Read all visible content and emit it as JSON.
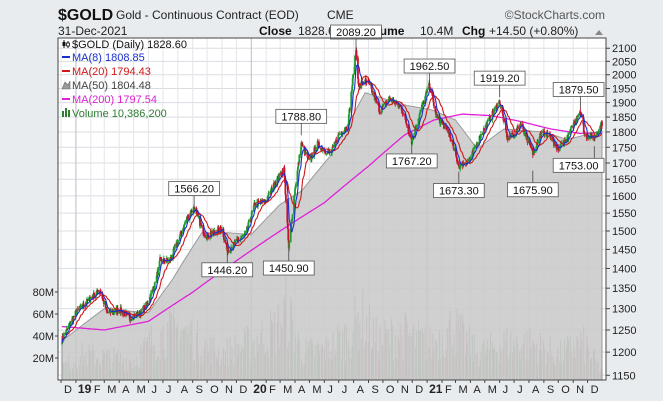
{
  "header": {
    "symbol": "$GOLD",
    "name": "Gold - Continuous Contract (EOD)",
    "exchange": "CME",
    "brand": "©StockCharts.com",
    "date": "31-Dec-2021",
    "close_label": "Close",
    "close_value": "1828.60",
    "volume_label": "Volume",
    "volume_value": "10.4M",
    "chg_label": "Chg",
    "chg_value": "+14.50 (+0.80%)"
  },
  "legend": [
    {
      "label": "$GOLD (Daily) 1828.60",
      "color": "#111111",
      "icon": "candlestick-icon"
    },
    {
      "label": "MA(8) 1808.85",
      "color": "#1a2fd0",
      "icon": "line-swatch-icon"
    },
    {
      "label": "MA(20) 1794.43",
      "color": "#d01818",
      "icon": "line-swatch-icon"
    },
    {
      "label": "MA(50) 1804.48",
      "color": "#777777",
      "icon": "area-swatch-icon"
    },
    {
      "label": "MA(200) 1797.54",
      "color": "#e020d8",
      "icon": "line-swatch-icon"
    },
    {
      "label": "Volume 10,386,200",
      "color": "#2e7d32",
      "icon": "volume-bars-icon"
    }
  ],
  "colors": {
    "background": "#e9ecef",
    "plot": "#ffffff",
    "up_candle": "#1e9a2e",
    "down_candle": "#c8102e",
    "ma8": "#1a2fd0",
    "ma20": "#d01818",
    "ma50_fill": "#c8c8c8",
    "ma200": "#e020d8",
    "volume_up": "#9db89d",
    "volume_down": "#c49aa2"
  },
  "chart_data": {
    "type": "line",
    "title": "$GOLD Gold - Continuous Contract (EOD) CME",
    "xlabel": "",
    "ylabel": "",
    "ylim": [
      1140,
      2140
    ],
    "y_scale": "log",
    "grid": true,
    "legend_position": "top-left",
    "price_axis_ticks": [
      2100,
      2050,
      2000,
      1950,
      1900,
      1850,
      1800,
      1750,
      1700,
      1650,
      1600,
      1550,
      1500,
      1450,
      1400,
      1350,
      1300,
      1250,
      1200,
      1150
    ],
    "volume_axis_ticks": [
      "80M",
      "60M",
      "40M",
      "20M"
    ],
    "volume_axis_values": [
      80000000,
      60000000,
      40000000,
      20000000
    ],
    "x_tick_labels": [
      "D",
      "19",
      "F",
      "M",
      "A",
      "M",
      "J",
      "J",
      "A",
      "S",
      "O",
      "N",
      "D",
      "20",
      "F",
      "M",
      "A",
      "M",
      "J",
      "J",
      "A",
      "S",
      "O",
      "N",
      "D",
      "21",
      "F",
      "M",
      "A",
      "M",
      "J",
      "J",
      "A",
      "S",
      "O",
      "N",
      "D"
    ],
    "x_tick_bold": [
      false,
      true,
      false,
      false,
      false,
      false,
      false,
      false,
      false,
      false,
      false,
      false,
      false,
      true,
      false,
      false,
      false,
      false,
      false,
      false,
      false,
      false,
      false,
      false,
      false,
      true,
      false,
      false,
      false,
      false,
      false,
      false,
      false,
      false,
      false,
      false,
      false
    ],
    "x_tick_dates": [
      "2018-12-01",
      "2019-01-01",
      "2019-02-01",
      "2019-03-01",
      "2019-04-01",
      "2019-05-01",
      "2019-06-01",
      "2019-07-01",
      "2019-08-01",
      "2019-09-01",
      "2019-10-01",
      "2019-11-01",
      "2019-12-01",
      "2020-01-01",
      "2020-02-01",
      "2020-03-01",
      "2020-04-01",
      "2020-05-01",
      "2020-06-01",
      "2020-07-01",
      "2020-08-01",
      "2020-09-01",
      "2020-10-01",
      "2020-11-01",
      "2020-12-01",
      "2021-01-01",
      "2021-02-01",
      "2021-03-01",
      "2021-04-01",
      "2021-05-01",
      "2021-06-01",
      "2021-07-01",
      "2021-08-01",
      "2021-09-01",
      "2021-10-01",
      "2021-11-01",
      "2021-12-01"
    ],
    "x_range": [
      "2018-12-03",
      "2021-12-31"
    ],
    "series": [
      {
        "name": "$GOLD (Daily)",
        "x": [
          "2018-12-03",
          "2019-01-01",
          "2019-01-31",
          "2019-02-20",
          "2019-03-07",
          "2019-04-01",
          "2019-04-23",
          "2019-05-15",
          "2019-05-30",
          "2019-06-15",
          "2019-06-25",
          "2019-07-15",
          "2019-08-01",
          "2019-08-20",
          "2019-09-04",
          "2019-09-20",
          "2019-10-01",
          "2019-10-15",
          "2019-11-01",
          "2019-11-12",
          "2019-12-01",
          "2019-12-20",
          "2020-01-08",
          "2020-01-31",
          "2020-02-24",
          "2020-03-09",
          "2020-03-19",
          "2020-04-01",
          "2020-04-14",
          "2020-05-01",
          "2020-05-18",
          "2020-06-01",
          "2020-06-15",
          "2020-07-01",
          "2020-07-20",
          "2020-08-06",
          "2020-08-12",
          "2020-08-20",
          "2020-09-01",
          "2020-09-25",
          "2020-10-15",
          "2020-11-09",
          "2020-11-30",
          "2020-12-20",
          "2021-01-06",
          "2021-01-20",
          "2021-02-15",
          "2021-03-08",
          "2021-03-31",
          "2021-04-20",
          "2021-05-10",
          "2021-06-01",
          "2021-06-17",
          "2021-07-01",
          "2021-07-15",
          "2021-08-09",
          "2021-08-25",
          "2021-09-10",
          "2021-09-28",
          "2021-10-20",
          "2021-11-16",
          "2021-11-25",
          "2021-12-15",
          "2021-12-31"
        ],
        "values": [
          1228,
          1290,
          1325,
          1345,
          1290,
          1298,
          1278,
          1290,
          1312,
          1360,
          1420,
          1420,
          1470,
          1535,
          1566,
          1508,
          1485,
          1495,
          1505,
          1446,
          1470,
          1490,
          1575,
          1585,
          1650,
          1680,
          1450.9,
          1620,
          1760,
          1705,
          1760,
          1740,
          1730,
          1790,
          1820,
          2089.2,
          1950,
          1975,
          1970,
          1870,
          1915,
          1880,
          1770,
          1880,
          1962.5,
          1855,
          1800,
          1690,
          1710,
          1780,
          1840,
          1905,
          1780,
          1790,
          1830,
          1730,
          1795,
          1795,
          1740,
          1780,
          1875,
          1790,
          1780,
          1828.6
        ]
      },
      {
        "name": "MA(50)",
        "x": [
          "2018-12-03",
          "2019-03-01",
          "2019-06-01",
          "2019-07-20",
          "2019-09-20",
          "2019-11-15",
          "2020-01-01",
          "2020-03-01",
          "2020-04-15",
          "2020-06-15",
          "2020-08-01",
          "2020-08-25",
          "2020-10-01",
          "2020-11-20",
          "2021-01-10",
          "2021-03-01",
          "2021-04-15",
          "2021-06-10",
          "2021-07-20",
          "2021-09-01",
          "2021-10-20",
          "2021-12-31"
        ],
        "values": [
          1225,
          1300,
          1290,
          1370,
          1495,
          1495,
          1490,
          1575,
          1615,
          1725,
          1860,
          1935,
          1915,
          1890,
          1875,
          1840,
          1745,
          1810,
          1805,
          1800,
          1775,
          1804.48
        ]
      },
      {
        "name": "MA(200)",
        "x": [
          "2018-12-03",
          "2019-03-01",
          "2019-06-01",
          "2019-09-01",
          "2019-12-01",
          "2020-03-01",
          "2020-06-01",
          "2020-09-01",
          "2020-11-15",
          "2021-01-15",
          "2021-03-15",
          "2021-05-15",
          "2021-07-15",
          "2021-09-15",
          "2021-11-15",
          "2021-12-31"
        ],
        "values": [
          1258,
          1250,
          1270,
          1340,
          1420,
          1500,
          1580,
          1690,
          1790,
          1840,
          1860,
          1855,
          1835,
          1810,
          1795,
          1797.54
        ]
      }
    ],
    "annotations": [
      {
        "label": "1566.20",
        "date": "2019-09-04",
        "value": 1566.2,
        "position": "above"
      },
      {
        "label": "1446.20",
        "date": "2019-11-12",
        "value": 1446.2,
        "position": "below"
      },
      {
        "label": "1450.90",
        "date": "2020-03-19",
        "value": 1450.9,
        "position": "below"
      },
      {
        "label": "1788.80",
        "date": "2020-04-14",
        "value": 1788.8,
        "position": "above"
      },
      {
        "label": "2089.20",
        "date": "2020-08-06",
        "value": 2089.2,
        "position": "above"
      },
      {
        "label": "1767.20",
        "date": "2020-11-30",
        "value": 1767.2,
        "position": "below"
      },
      {
        "label": "1962.50",
        "date": "2021-01-06",
        "value": 1962.5,
        "position": "above"
      },
      {
        "label": "1673.30",
        "date": "2021-03-08",
        "value": 1673.3,
        "position": "below"
      },
      {
        "label": "1919.20",
        "date": "2021-06-01",
        "value": 1919.2,
        "position": "above"
      },
      {
        "label": "1675.90",
        "date": "2021-08-09",
        "value": 1675.9,
        "position": "below"
      },
      {
        "label": "1879.50",
        "date": "2021-11-16",
        "value": 1879.5,
        "position": "above"
      },
      {
        "label": "1753.00",
        "date": "2021-12-15",
        "value": 1753.0,
        "position": "below"
      }
    ],
    "volume": {
      "name": "Volume",
      "x": [
        "2018-12-03",
        "2019-01-15",
        "2019-03-01",
        "2019-05-01",
        "2019-06-20",
        "2019-08-10",
        "2019-09-15",
        "2019-11-01",
        "2020-01-01",
        "2020-02-24",
        "2020-03-15",
        "2020-04-15",
        "2020-06-01",
        "2020-07-25",
        "2020-08-15",
        "2020-09-20",
        "2020-11-10",
        "2021-01-08",
        "2021-02-25",
        "2021-04-15",
        "2021-06-15",
        "2021-08-10",
        "2021-10-01",
        "2021-11-20",
        "2021-12-31"
      ],
      "values": [
        15000000,
        28000000,
        26000000,
        22000000,
        50000000,
        58000000,
        42000000,
        30000000,
        42000000,
        58000000,
        80000000,
        32000000,
        33000000,
        52000000,
        72000000,
        44000000,
        52000000,
        40000000,
        60000000,
        30000000,
        42000000,
        40000000,
        28000000,
        42000000,
        10386200
      ]
    }
  }
}
